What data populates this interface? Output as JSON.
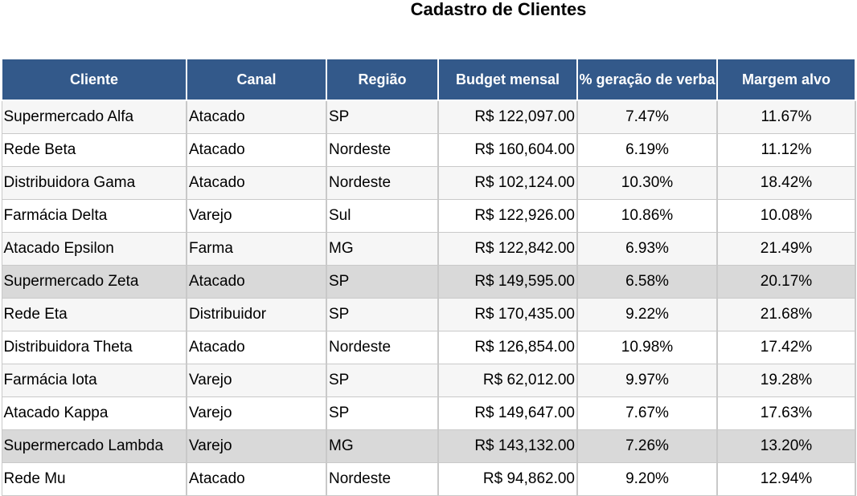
{
  "title": "Cadastro de Clientes",
  "headers": [
    "Cliente",
    "Canal",
    "Região",
    "Budget mensal",
    "% geração de verba",
    "Margem alvo"
  ],
  "rows": [
    {
      "cliente": "Supermercado Alfa",
      "canal": "Atacado",
      "regiao": "SP",
      "budget": "R$ 122,097.00",
      "geracao": "7.47%",
      "margem": "11.67%",
      "highlight": false
    },
    {
      "cliente": "Rede Beta",
      "canal": "Atacado",
      "regiao": "Nordeste",
      "budget": "R$ 160,604.00",
      "geracao": "6.19%",
      "margem": "11.12%",
      "highlight": false
    },
    {
      "cliente": "Distribuidora Gama",
      "canal": "Atacado",
      "regiao": "Nordeste",
      "budget": "R$ 102,124.00",
      "geracao": "10.30%",
      "margem": "18.42%",
      "highlight": false
    },
    {
      "cliente": "Farmácia Delta",
      "canal": "Varejo",
      "regiao": "Sul",
      "budget": "R$ 122,926.00",
      "geracao": "10.86%",
      "margem": "10.08%",
      "highlight": false
    },
    {
      "cliente": "Atacado Epsilon",
      "canal": "Farma",
      "regiao": "MG",
      "budget": "R$ 122,842.00",
      "geracao": "6.93%",
      "margem": "21.49%",
      "highlight": false
    },
    {
      "cliente": "Supermercado Zeta",
      "canal": "Atacado",
      "regiao": "SP",
      "budget": "R$ 149,595.00",
      "geracao": "6.58%",
      "margem": "20.17%",
      "highlight": true
    },
    {
      "cliente": "Rede Eta",
      "canal": "Distribuidor",
      "regiao": "SP",
      "budget": "R$ 170,435.00",
      "geracao": "9.22%",
      "margem": "21.68%",
      "highlight": false
    },
    {
      "cliente": "Distribuidora Theta",
      "canal": "Atacado",
      "regiao": "Nordeste",
      "budget": "R$ 126,854.00",
      "geracao": "10.98%",
      "margem": "17.42%",
      "highlight": false
    },
    {
      "cliente": "Farmácia Iota",
      "canal": "Varejo",
      "regiao": "SP",
      "budget": "R$ 62,012.00",
      "geracao": "9.97%",
      "margem": "19.28%",
      "highlight": false
    },
    {
      "cliente": "Atacado Kappa",
      "canal": "Varejo",
      "regiao": "SP",
      "budget": "R$ 149,647.00",
      "geracao": "7.67%",
      "margem": "17.63%",
      "highlight": false
    },
    {
      "cliente": "Supermercado Lambda",
      "canal": "Varejo",
      "regiao": "MG",
      "budget": "R$ 143,132.00",
      "geracao": "7.26%",
      "margem": "13.20%",
      "highlight": true
    },
    {
      "cliente": "Rede Mu",
      "canal": "Atacado",
      "regiao": "Nordeste",
      "budget": "R$ 94,862.00",
      "geracao": "9.20%",
      "margem": "12.94%",
      "highlight": false
    }
  ],
  "colors": {
    "header_bg": "#33598a",
    "header_text": "#ffffff",
    "row_highlight": "#d9d9d9",
    "row_band": "#f6f6f6",
    "grid_line": "#c9c9c9"
  }
}
